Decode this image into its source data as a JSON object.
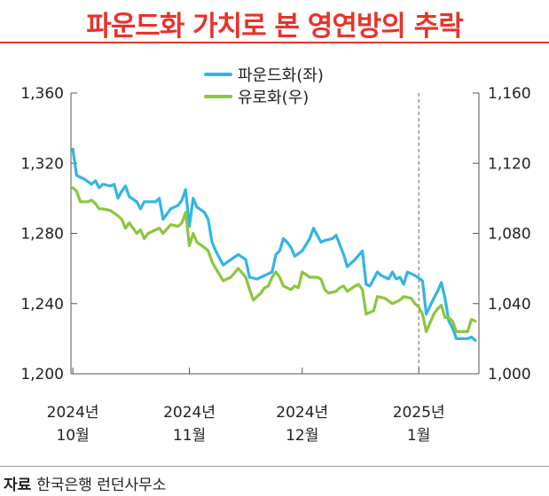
{
  "title": "파운드화 가치로 본 영연방의 추락",
  "source_label": "자료",
  "source_text": "한국은행 런던사무소",
  "colors": {
    "title": "#e8332a",
    "gbp": "#33b4e5",
    "eur": "#8cc63f",
    "axis": "#555555"
  },
  "chart_data": {
    "type": "line",
    "title": "파운드화 가치로 본 영연방의 추락",
    "legend_position": "top-center",
    "grid": false,
    "x_ticks": [
      {
        "x": 0,
        "line1": "2024년",
        "line2": "10월"
      },
      {
        "x": 31,
        "line1": "2024년",
        "line2": "11월"
      },
      {
        "x": 61,
        "line1": "2024년",
        "line2": "12월"
      },
      {
        "x": 92,
        "line1": "2025년",
        "line2": "1월"
      }
    ],
    "xlim": [
      -0.5,
      108
    ],
    "marker_x": 92,
    "y_left": {
      "lim": [
        1200,
        1360
      ],
      "ticks": [
        "1,200",
        "1,240",
        "1,280",
        "1,320",
        "1,360"
      ]
    },
    "y_right": {
      "lim": [
        1000,
        1160
      ],
      "ticks": [
        "1,000",
        "1,040",
        "1,080",
        "1,120",
        "1,160"
      ]
    },
    "series": [
      {
        "name": "파운드화(좌)",
        "axis": "left",
        "color": "#33b4e5",
        "points": [
          [
            0,
            1328
          ],
          [
            1,
            1313
          ],
          [
            3,
            1311
          ],
          [
            5,
            1308
          ],
          [
            6,
            1310
          ],
          [
            7,
            1306
          ],
          [
            8,
            1308
          ],
          [
            10,
            1307
          ],
          [
            11,
            1308
          ],
          [
            12,
            1300
          ],
          [
            13,
            1304
          ],
          [
            14,
            1307
          ],
          [
            15,
            1301
          ],
          [
            17,
            1298
          ],
          [
            18,
            1294
          ],
          [
            19,
            1298
          ],
          [
            20,
            1298
          ],
          [
            22,
            1298
          ],
          [
            23,
            1300
          ],
          [
            24,
            1288
          ],
          [
            26,
            1294
          ],
          [
            28,
            1296
          ],
          [
            29,
            1299
          ],
          [
            30,
            1305
          ],
          [
            31,
            1284
          ],
          [
            32,
            1300
          ],
          [
            33,
            1295
          ],
          [
            35,
            1292
          ],
          [
            36,
            1288
          ],
          [
            37,
            1275
          ],
          [
            38,
            1270
          ],
          [
            40,
            1262
          ],
          [
            42,
            1265
          ],
          [
            44,
            1268
          ],
          [
            46,
            1265
          ],
          [
            47,
            1255
          ],
          [
            49,
            1254
          ],
          [
            51,
            1256
          ],
          [
            52,
            1257
          ],
          [
            53,
            1258
          ],
          [
            54,
            1268
          ],
          [
            55,
            1270
          ],
          [
            56,
            1277
          ],
          [
            57,
            1275
          ],
          [
            58,
            1272
          ],
          [
            59,
            1267
          ],
          [
            61,
            1270
          ],
          [
            63,
            1277
          ],
          [
            64,
            1283
          ],
          [
            66,
            1275
          ],
          [
            67,
            1276
          ],
          [
            69,
            1277
          ],
          [
            70,
            1279
          ],
          [
            72,
            1268
          ],
          [
            73,
            1261
          ],
          [
            75,
            1265
          ],
          [
            77,
            1270
          ],
          [
            78,
            1251
          ],
          [
            79,
            1250
          ],
          [
            81,
            1258
          ],
          [
            82,
            1256
          ],
          [
            84,
            1254
          ],
          [
            85,
            1258
          ],
          [
            86,
            1254
          ],
          [
            87,
            1255
          ],
          [
            88,
            1251
          ],
          [
            89,
            1258
          ],
          [
            91,
            1256
          ],
          [
            93,
            1253
          ],
          [
            94,
            1234
          ],
          [
            96,
            1243
          ],
          [
            97,
            1247
          ],
          [
            98,
            1252
          ],
          [
            99,
            1243
          ],
          [
            100,
            1230
          ],
          [
            101,
            1226
          ],
          [
            102,
            1220
          ],
          [
            105,
            1220
          ],
          [
            106,
            1221
          ],
          [
            107,
            1219
          ]
        ]
      },
      {
        "name": "유로화(우)",
        "axis": "right",
        "color": "#8cc63f",
        "points": [
          [
            0,
            1106
          ],
          [
            1,
            1104
          ],
          [
            2,
            1098
          ],
          [
            4,
            1098
          ],
          [
            5,
            1099
          ],
          [
            6,
            1097
          ],
          [
            7,
            1094
          ],
          [
            8,
            1094
          ],
          [
            10,
            1093
          ],
          [
            12,
            1090
          ],
          [
            13,
            1088
          ],
          [
            14,
            1083
          ],
          [
            15,
            1086
          ],
          [
            16,
            1083
          ],
          [
            17,
            1080
          ],
          [
            18,
            1082
          ],
          [
            19,
            1077
          ],
          [
            20,
            1080
          ],
          [
            21,
            1081
          ],
          [
            23,
            1083
          ],
          [
            24,
            1080
          ],
          [
            26,
            1085
          ],
          [
            28,
            1084
          ],
          [
            29,
            1086
          ],
          [
            30,
            1092
          ],
          [
            31,
            1073
          ],
          [
            32,
            1080
          ],
          [
            33,
            1075
          ],
          [
            35,
            1072
          ],
          [
            36,
            1070
          ],
          [
            37,
            1064
          ],
          [
            38,
            1060
          ],
          [
            40,
            1053
          ],
          [
            42,
            1055
          ],
          [
            44,
            1060
          ],
          [
            46,
            1055
          ],
          [
            47,
            1048
          ],
          [
            48,
            1042
          ],
          [
            50,
            1046
          ],
          [
            51,
            1049
          ],
          [
            52,
            1050
          ],
          [
            53,
            1055
          ],
          [
            54,
            1058
          ],
          [
            55,
            1055
          ],
          [
            56,
            1050
          ],
          [
            58,
            1048
          ],
          [
            59,
            1050
          ],
          [
            60,
            1049
          ],
          [
            61,
            1058
          ],
          [
            63,
            1055
          ],
          [
            65,
            1055
          ],
          [
            66,
            1054
          ],
          [
            67,
            1048
          ],
          [
            68,
            1046
          ],
          [
            70,
            1047
          ],
          [
            71,
            1049
          ],
          [
            72,
            1050
          ],
          [
            73,
            1047
          ],
          [
            75,
            1050
          ],
          [
            76,
            1051
          ],
          [
            77,
            1048
          ],
          [
            78,
            1034
          ],
          [
            80,
            1036
          ],
          [
            81,
            1044
          ],
          [
            83,
            1043
          ],
          [
            85,
            1040
          ],
          [
            87,
            1042
          ],
          [
            88,
            1044
          ],
          [
            90,
            1043
          ],
          [
            91,
            1040
          ],
          [
            92,
            1038
          ],
          [
            93,
            1034
          ],
          [
            94,
            1024
          ],
          [
            96,
            1034
          ],
          [
            97,
            1037
          ],
          [
            98,
            1039
          ],
          [
            99,
            1032
          ],
          [
            100,
            1032
          ],
          [
            101,
            1030
          ],
          [
            102,
            1024
          ],
          [
            105,
            1024
          ],
          [
            106,
            1031
          ],
          [
            107,
            1030
          ]
        ]
      }
    ]
  }
}
